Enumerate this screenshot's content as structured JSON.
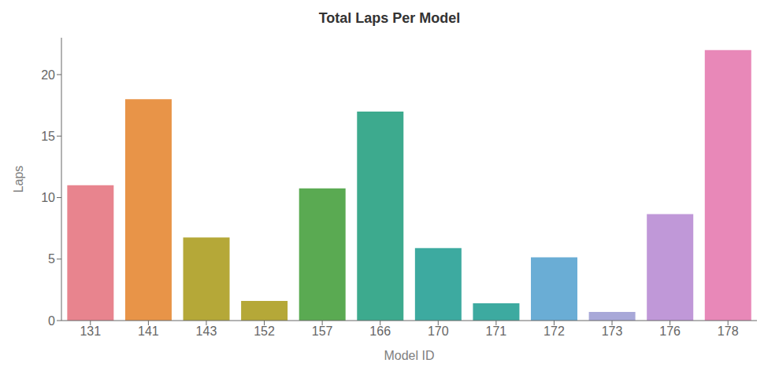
{
  "chart_data": {
    "type": "bar",
    "title": "Total Laps Per Model",
    "xlabel": "Model ID",
    "ylabel": "Laps",
    "categories": [
      "131",
      "141",
      "143",
      "152",
      "157",
      "166",
      "170",
      "171",
      "172",
      "173",
      "176",
      "178"
    ],
    "values": [
      11.0,
      18.0,
      6.75,
      1.6,
      10.75,
      17.0,
      5.9,
      1.4,
      5.15,
      0.7,
      8.65,
      22.0
    ],
    "colors": [
      "#e8848e",
      "#e89448",
      "#b5a838",
      "#b5a838",
      "#5aaa52",
      "#3daa8e",
      "#3daaa0",
      "#3daaa0",
      "#6aadd5",
      "#a8a8d8",
      "#c098d8",
      "#e888b8"
    ],
    "ylim": [
      0,
      23
    ],
    "yticks": [
      0,
      5,
      10,
      15,
      20
    ],
    "grid": false
  }
}
